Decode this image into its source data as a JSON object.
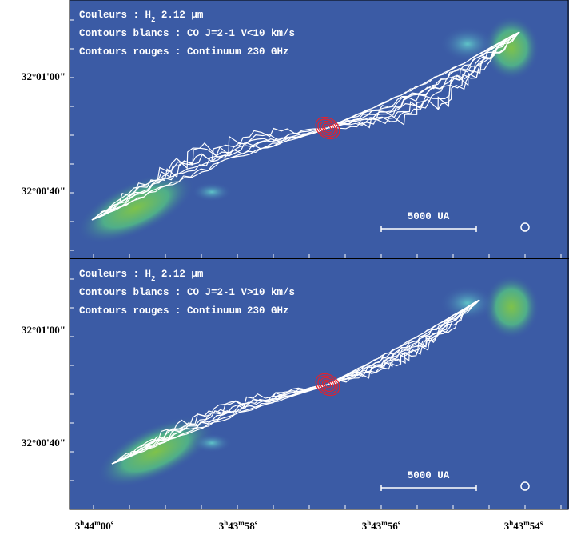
{
  "panels": [
    {
      "legend": [
        [
          "Couleurs : H",
          "2",
          " 2.12 μm"
        ],
        [
          "Contours blancs : CO J=2-1 V<10 km/s"
        ],
        [
          "Contours rouges : Continuum 230 GHz"
        ]
      ],
      "scale_bar": "5000 UA",
      "y_ticks": [
        "32°01'00\"",
        "32°00'40\""
      ]
    },
    {
      "legend": [
        [
          "Couleurs : H",
          "2",
          " 2.12 μm"
        ],
        [
          "Contours blancs : CO J=2-1 V>10 km/s"
        ],
        [
          "Contours rouges : Continuum 230 GHz"
        ]
      ],
      "scale_bar": "5000 UA",
      "y_ticks": [
        "32°01'00\"",
        "32°00'40\""
      ]
    }
  ],
  "x_axis": {
    "units": [
      "h",
      "m",
      "s"
    ],
    "ticks": [
      [
        "3",
        "44",
        "00"
      ],
      [
        "3",
        "43",
        "58"
      ],
      [
        "3",
        "43",
        "56"
      ],
      [
        "3",
        "43",
        "54"
      ]
    ]
  }
}
